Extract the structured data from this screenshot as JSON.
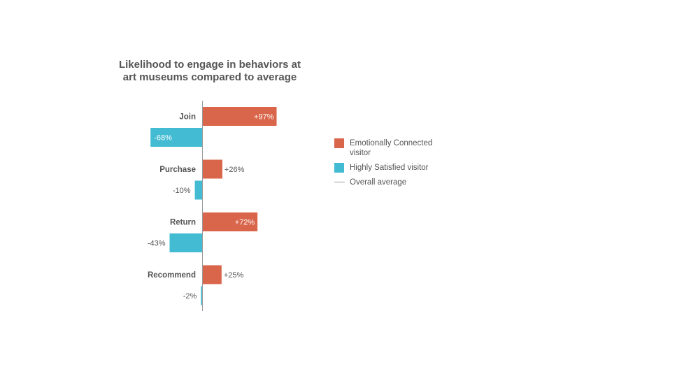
{
  "chart_data": {
    "type": "bar",
    "orientation": "horizontal",
    "title": "Likelihood to engage in behaviors at art museums compared to average",
    "title_lines": [
      "Likelihood to engage in behaviors at",
      "art museums compared to average"
    ],
    "categories": [
      "Join",
      "Purchase",
      "Return",
      "Recommend"
    ],
    "series": [
      {
        "name": "Emotionally Connected visitor",
        "color": "#D9654A",
        "values": [
          97,
          26,
          72,
          25
        ],
        "labels": [
          "+97%",
          "+26%",
          "+72%",
          "+25%"
        ]
      },
      {
        "name": "Highly Satisfied visitor",
        "color": "#42BBD3",
        "values": [
          -68,
          -10,
          -43,
          -2
        ],
        "labels": [
          "-68%",
          "-10%",
          "-43%",
          "-2%"
        ]
      }
    ],
    "baseline_value": 0,
    "grid": false,
    "legend_position": "right",
    "legend": [
      {
        "label_lines": [
          "Emotionally Connected",
          "visitor"
        ],
        "type": "swatch",
        "color": "#D9654A"
      },
      {
        "label_lines": [
          "Highly Satisfied visitor"
        ],
        "type": "swatch",
        "color": "#42BBD3"
      },
      {
        "label_lines": [
          "Overall average"
        ],
        "type": "line",
        "color": "#9a9a9a"
      }
    ]
  }
}
